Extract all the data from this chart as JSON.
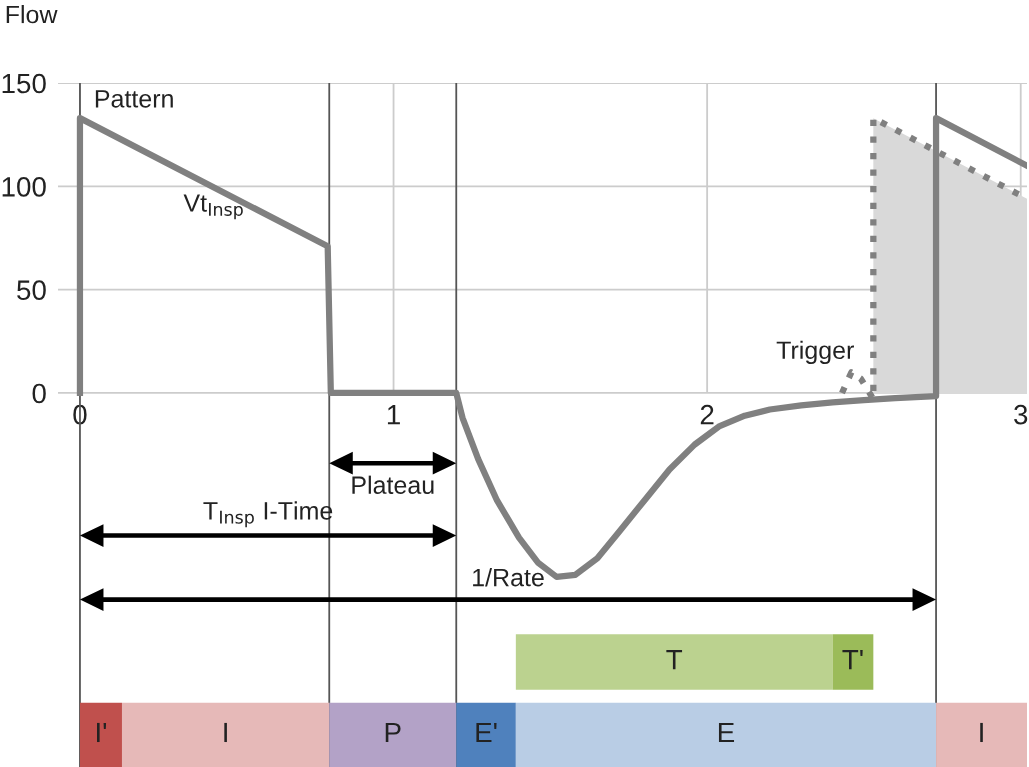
{
  "chart_data": {
    "type": "line",
    "ylabel": "Flow",
    "xlim": [
      -0.07,
      3.02
    ],
    "ylim": [
      -181,
      150
    ],
    "xticks": [
      0,
      1,
      2,
      3
    ],
    "yticks": [
      0,
      50,
      100,
      150
    ],
    "grid": true,
    "series": [
      {
        "type": "area",
        "color": "#d9d9d9",
        "x": [
          2.53,
          2.53,
          3.02
        ],
        "values": [
          0,
          133,
          94
        ]
      },
      {
        "color": "#808080",
        "line_style": "solid",
        "x": [
          0,
          0,
          0.79,
          0.8,
          1.2,
          1.22,
          1.27,
          1.33,
          1.4,
          1.46,
          1.52,
          1.58,
          1.65,
          1.72,
          1.8,
          1.88,
          1.96,
          2.04,
          2.12,
          2.2,
          2.3,
          2.4,
          2.5,
          2.6,
          2.73,
          2.73,
          3.02
        ],
        "values": [
          0,
          133,
          71,
          0,
          0,
          -12,
          -32,
          -52,
          -70,
          -82,
          -89,
          -88,
          -80,
          -67,
          -52,
          -37,
          -25,
          -16,
          -11,
          -8,
          -6,
          -4.5,
          -3.5,
          -2.5,
          -1.5,
          133,
          110
        ]
      },
      {
        "color": "#808080",
        "line_style": "dotted",
        "x": [
          2.43,
          2.46,
          2.49,
          2.53,
          2.53,
          3.02
        ],
        "values": [
          0,
          10,
          7,
          -3,
          133,
          94
        ]
      }
    ],
    "ref_lines": [
      {
        "axis": "x",
        "value": 0,
        "color": "#555555"
      },
      {
        "axis": "x",
        "value": 0.795,
        "color": "#555555"
      },
      {
        "axis": "x",
        "value": 1.2,
        "color": "#555555"
      },
      {
        "axis": "x",
        "value": 2.73,
        "color": "#555555"
      }
    ],
    "bands": [
      {
        "axis": "x",
        "from": 0,
        "to": 0.134,
        "label": "I'",
        "color": "#c0504d"
      },
      {
        "axis": "x",
        "from": 0.134,
        "to": 0.795,
        "label": "I",
        "color": "#e6b9b8"
      },
      {
        "axis": "x",
        "from": 0.795,
        "to": 1.2,
        "label": "P",
        "color": "#b3a2c7"
      },
      {
        "axis": "x",
        "from": 1.2,
        "to": 1.39,
        "label": "E'",
        "color": "#4f81bd"
      },
      {
        "axis": "x",
        "from": 1.39,
        "to": 2.73,
        "label": "E",
        "color": "#b9cde5"
      },
      {
        "axis": "x",
        "from": 2.73,
        "to": 3.02,
        "label": "I",
        "color": "#e6b9b8"
      },
      {
        "axis": "x",
        "from": 1.39,
        "to": 2.4,
        "label": "T",
        "color": "#bbd28f"
      },
      {
        "axis": "x",
        "from": 2.4,
        "to": 2.53,
        "label": "T'",
        "color": "#9bbb59"
      }
    ],
    "annotations": [
      {
        "text": "Pattern",
        "x": 0,
        "y": 133
      },
      "Vt$_{Insp}$",
      "Trigger",
      "Plateau",
      "T$_{Insp}$ I-Time",
      "1/Rate"
    ]
  }
}
